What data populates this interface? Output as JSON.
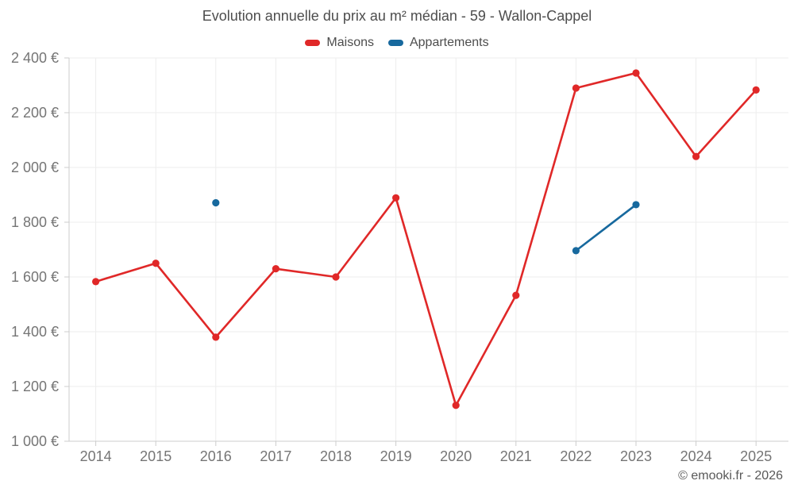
{
  "chart_data": {
    "type": "line",
    "title": "Evolution annuelle du prix au m² médian - 59 - Wallon-Cappel",
    "categories": [
      "2014",
      "2015",
      "2016",
      "2017",
      "2018",
      "2019",
      "2020",
      "2021",
      "2022",
      "2023",
      "2024",
      "2025"
    ],
    "series": [
      {
        "name": "Maisons",
        "color": "#e02828",
        "values": [
          1583,
          1650,
          1380,
          1630,
          1600,
          1889,
          1131,
          1533,
          2290,
          2345,
          2040,
          2283
        ]
      },
      {
        "name": "Appartements",
        "color": "#17699e",
        "values": [
          null,
          null,
          1871,
          null,
          null,
          null,
          null,
          null,
          1696,
          1864,
          null,
          null
        ]
      }
    ],
    "ylim": [
      1000,
      2400
    ],
    "y_ticks": [
      1000,
      1200,
      1400,
      1600,
      1800,
      2000,
      2200,
      2400
    ],
    "y_tick_labels": [
      "1 000 €",
      "1 200 €",
      "1 400 €",
      "1 600 €",
      "1 800 €",
      "2 000 €",
      "2 200 €",
      "2 400 €"
    ],
    "grid": true,
    "legend_position": "top",
    "credit": "© emooki.fr - 2026"
  }
}
